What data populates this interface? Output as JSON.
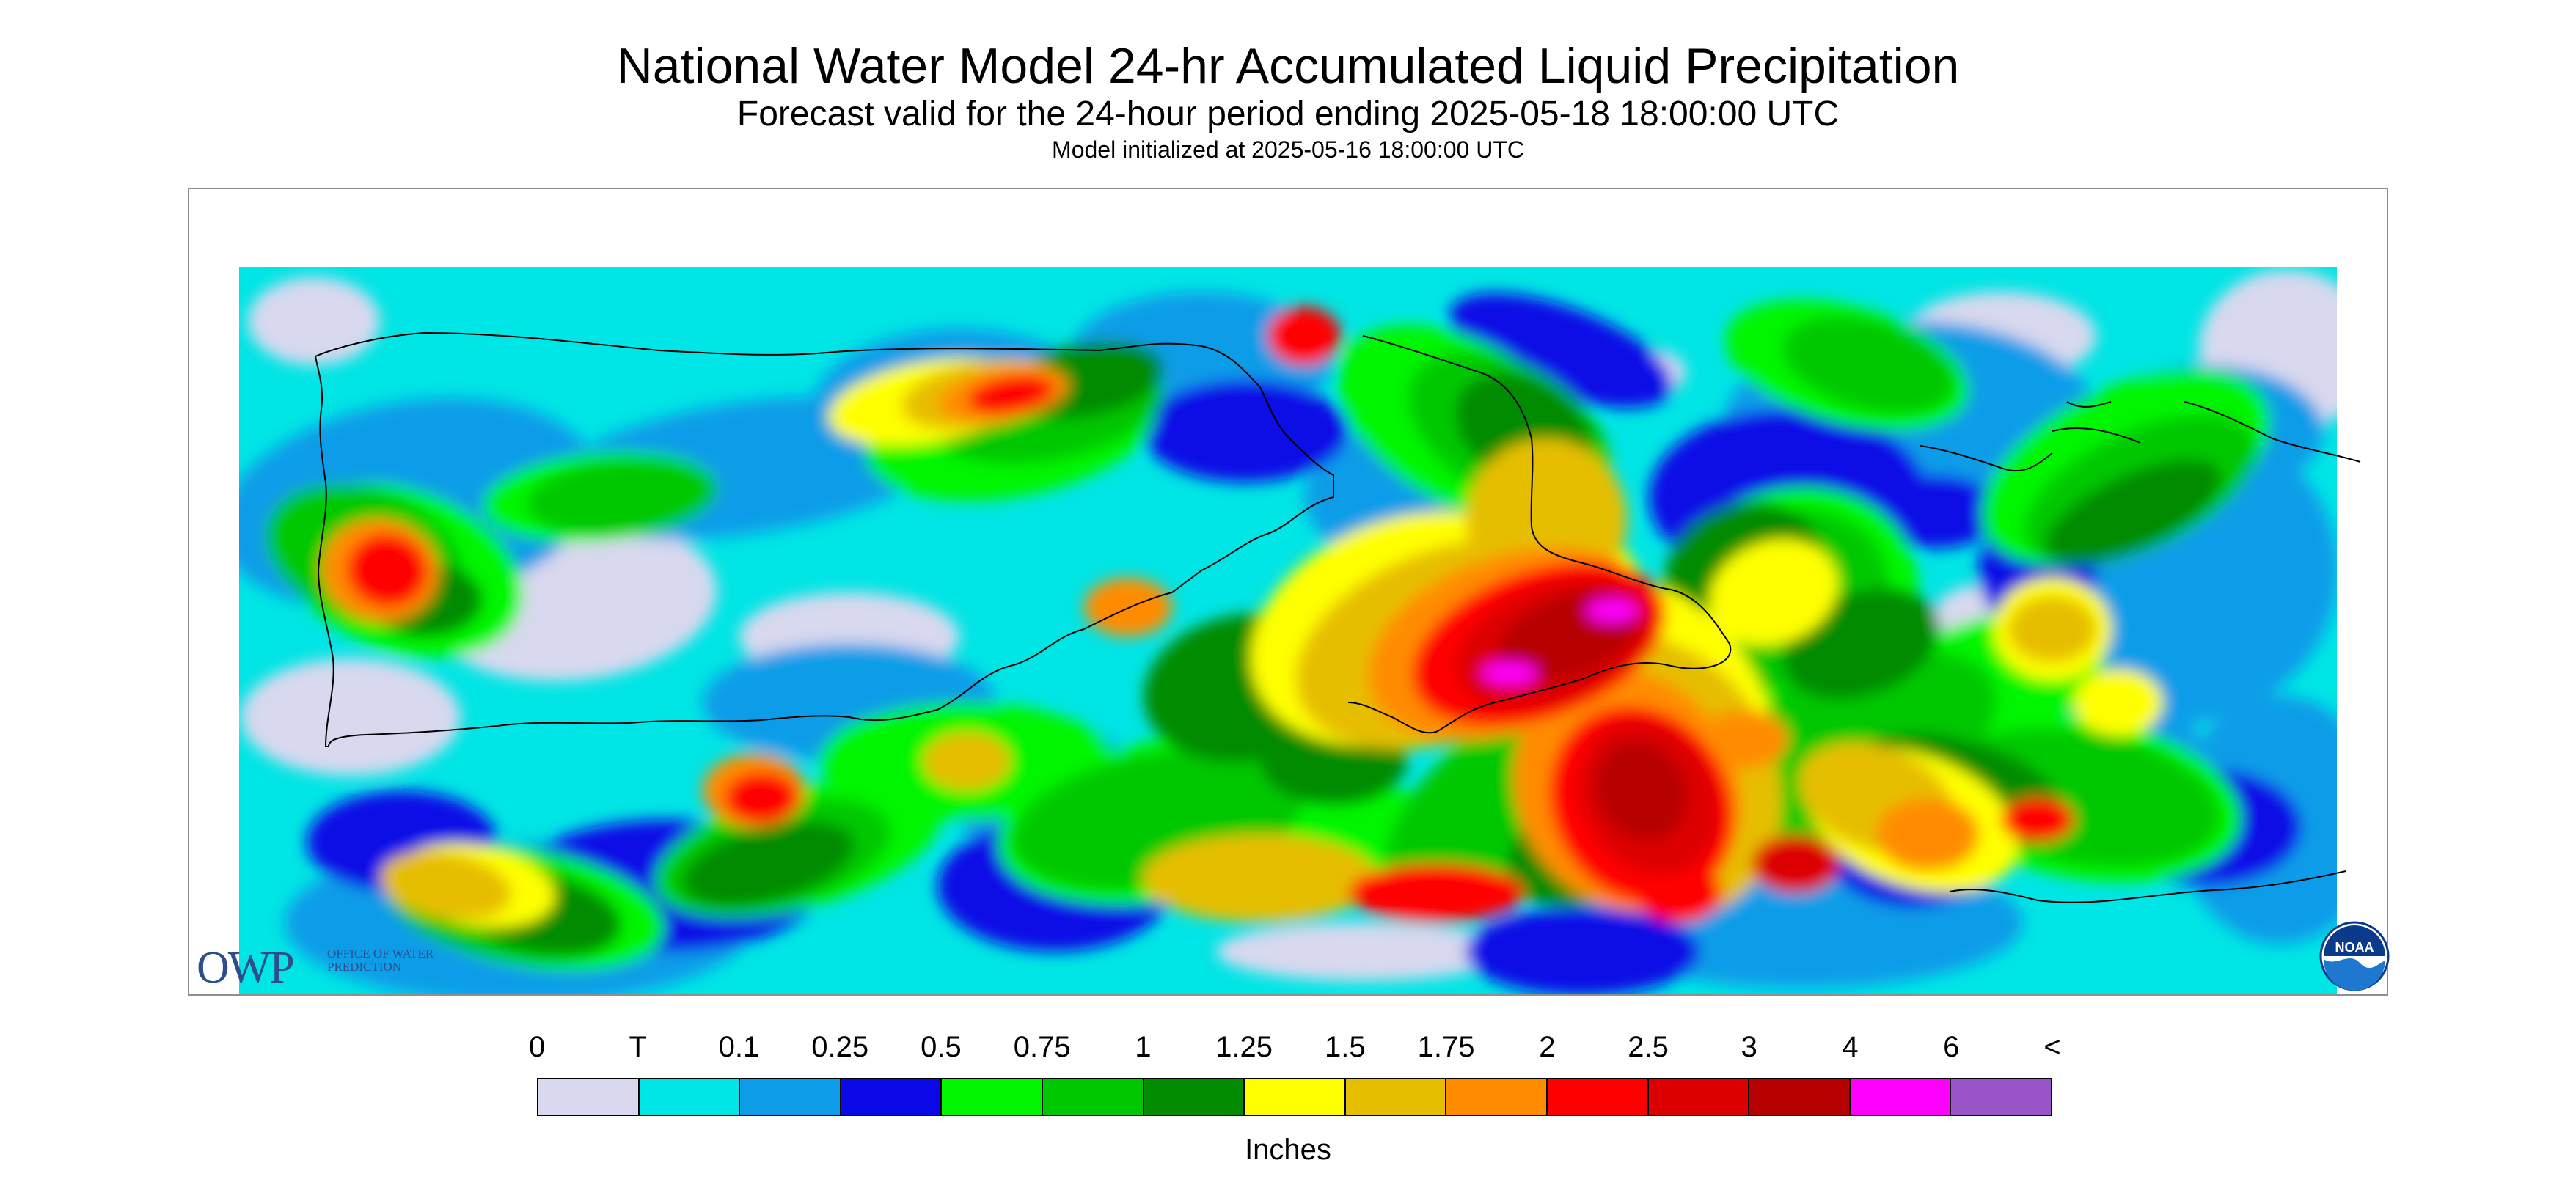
{
  "header": {
    "title": "National Water Model 24-hr Accumulated Liquid Precipitation",
    "subtitle": "Forecast valid for the 24-hour period ending 2025-05-18 18:00:00 UTC",
    "init": "Model initialized at 2025-05-16 18:00:00 UTC"
  },
  "map": {
    "background_color": "#00e5e5",
    "coastline_color": "#000000"
  },
  "logos": {
    "owp_letters": "OWP",
    "owp_subtext": "OFFICE OF WATER PREDICTION",
    "noaa_text": "NOAA"
  },
  "legend": {
    "labels": [
      "0",
      "T",
      "0.1",
      "0.25",
      "0.5",
      "0.75",
      "1",
      "1.25",
      "1.5",
      "1.75",
      "2",
      "2.5",
      "3",
      "4",
      "6",
      "<"
    ],
    "colors": [
      "#d8d8ee",
      "#00e5e5",
      "#0d9de8",
      "#0a08e6",
      "#00f500",
      "#00c800",
      "#008b00",
      "#ffff00",
      "#e6be00",
      "#ff8c00",
      "#ff0000",
      "#dd0000",
      "#b70000",
      "#ff00ff",
      "#9955c9"
    ],
    "units": "Inches"
  }
}
